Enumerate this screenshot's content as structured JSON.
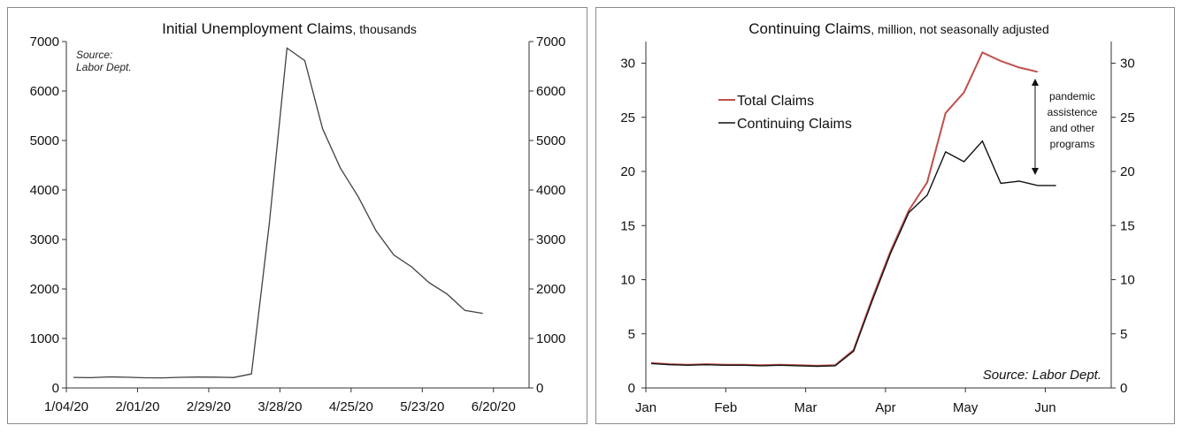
{
  "chart_data": [
    {
      "type": "line",
      "title": "Initial Unemployment Claims",
      "title_unit": ", thousands",
      "source_line1": "Source:",
      "source_line2": "Labor Dept.",
      "xlabel": "",
      "ylabel": "",
      "ylim": [
        0,
        7000
      ],
      "yticks": [
        "0",
        "1000",
        "2000",
        "3000",
        "4000",
        "5000",
        "6000",
        "7000"
      ],
      "xtick_labels": [
        "1/04/20",
        "2/01/20",
        "2/29/20",
        "3/28/20",
        "4/25/20",
        "5/23/20",
        "6/20/20"
      ],
      "grid": false,
      "line_color": "#404040",
      "x": [
        "1/04/20",
        "1/11/20",
        "1/18/20",
        "1/25/20",
        "2/01/20",
        "2/08/20",
        "2/15/20",
        "2/22/20",
        "2/29/20",
        "3/07/20",
        "3/14/20",
        "3/21/20",
        "3/28/20",
        "4/04/20",
        "4/11/20",
        "4/18/20",
        "4/25/20",
        "5/02/20",
        "5/09/20",
        "5/16/20",
        "5/23/20",
        "5/30/20",
        "6/06/20",
        "6/13/20"
      ],
      "values": [
        212,
        207,
        223,
        216,
        205,
        203,
        215,
        219,
        217,
        211,
        282,
        3307,
        6867,
        6615,
        5237,
        4442,
        3867,
        3176,
        2687,
        2446,
        2123,
        1897,
        1566,
        1508
      ]
    },
    {
      "type": "line",
      "title": "Continuing Claims",
      "title_unit": ", million, not seasonally adjusted",
      "source": "Source: Labor Dept.",
      "xlabel": "",
      "ylabel": "",
      "ylim": [
        0,
        32
      ],
      "yticks": [
        "0",
        "5",
        "10",
        "15",
        "20",
        "25",
        "30"
      ],
      "xtick_labels": [
        "Jan",
        "Feb",
        "Mar",
        "Apr",
        "May",
        "Jun"
      ],
      "grid": false,
      "legend_position": "upper-left",
      "annotation": [
        "pandemic",
        "assistence",
        "and other",
        "programs"
      ],
      "x": [
        "1/04",
        "1/11",
        "1/18",
        "1/25",
        "2/01",
        "2/08",
        "2/15",
        "2/22",
        "2/29",
        "3/07",
        "3/14",
        "3/21",
        "3/28",
        "4/04",
        "4/11",
        "4/18",
        "4/25",
        "5/02",
        "5/09",
        "5/16",
        "5/23",
        "5/30"
      ],
      "series": [
        {
          "name": "Total Claims",
          "color": "#c0504d",
          "values": [
            2.3,
            2.2,
            2.15,
            2.2,
            2.15,
            2.15,
            2.1,
            2.15,
            2.1,
            2.05,
            2.1,
            3.5,
            8.2,
            12.6,
            16.4,
            19.0,
            25.4,
            27.3,
            31.0,
            30.2,
            29.6,
            29.2
          ]
        },
        {
          "name": "Continuing Claims",
          "color": "#111111",
          "values": [
            2.25,
            2.15,
            2.1,
            2.15,
            2.1,
            2.1,
            2.05,
            2.1,
            2.05,
            2.0,
            2.05,
            3.4,
            8.0,
            12.4,
            16.2,
            17.8,
            21.8,
            20.9,
            22.8,
            18.9,
            19.1,
            18.7
          ]
        }
      ],
      "series_extension": {
        "name": "Continuing Claims",
        "x": [
          "6/06"
        ],
        "values": [
          18.7
        ]
      }
    }
  ]
}
